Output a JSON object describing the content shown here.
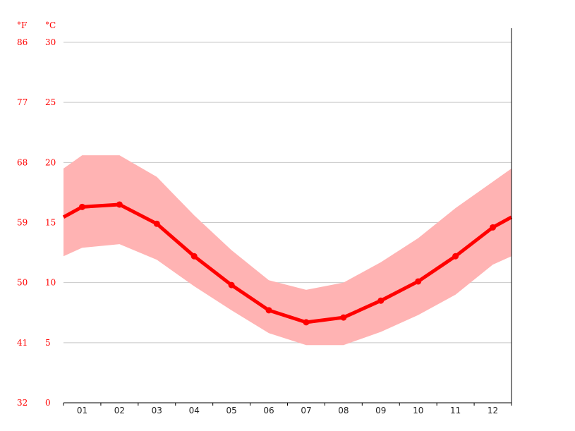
{
  "chart_data": {
    "type": "line",
    "title": "",
    "xlabel": "",
    "ylabel": "",
    "unit_f": "°F",
    "unit_c": "°C",
    "categories": [
      "01",
      "02",
      "03",
      "04",
      "05",
      "06",
      "07",
      "08",
      "09",
      "10",
      "11",
      "12"
    ],
    "ylim": [
      0,
      30
    ],
    "yticks_c": [
      "0",
      "5",
      "10",
      "15",
      "20",
      "25",
      "30"
    ],
    "yticks_f": [
      "32",
      "41",
      "50",
      "59",
      "68",
      "77",
      "86"
    ],
    "grid": true,
    "series": [
      {
        "role": "mean",
        "color": "#ff0000",
        "values": [
          16.3,
          16.5,
          14.9,
          12.2,
          9.8,
          7.7,
          6.7,
          7.1,
          8.5,
          10.1,
          12.2,
          14.6
        ]
      },
      {
        "role": "max",
        "color": "#ffb3b3",
        "values": [
          20.6,
          20.6,
          18.8,
          15.6,
          12.7,
          10.2,
          9.4,
          10.0,
          11.7,
          13.7,
          16.2,
          18.4
        ]
      },
      {
        "role": "min",
        "color": "#ffb3b3",
        "values": [
          12.9,
          13.2,
          11.9,
          9.7,
          7.7,
          5.8,
          4.8,
          4.8,
          5.9,
          7.3,
          9.0,
          11.5
        ]
      }
    ]
  }
}
